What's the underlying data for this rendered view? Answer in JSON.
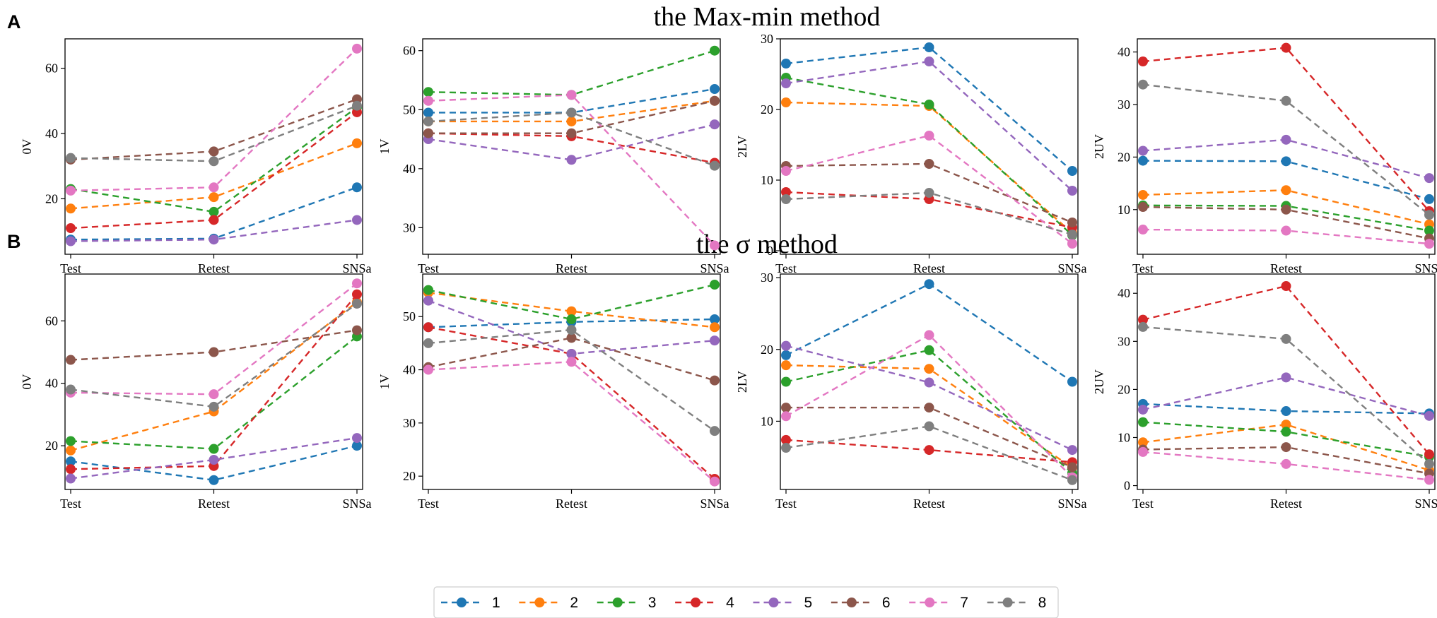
{
  "figure": {
    "panel_labels": [
      "A",
      "B"
    ],
    "row_titles": [
      "the Max-min method",
      "the σ method"
    ]
  },
  "colors": {
    "1": "#1f77b4",
    "2": "#ff7f0e",
    "3": "#2ca02c",
    "4": "#d62728",
    "5": "#9467bd",
    "6": "#8c564b",
    "7": "#e377c2",
    "8": "#7f7f7f"
  },
  "legend": [
    "1",
    "2",
    "3",
    "4",
    "5",
    "6",
    "7",
    "8"
  ],
  "chart_data": [
    {
      "type": "line",
      "row": "A",
      "ylabel": "0V",
      "categories": [
        "Test",
        "Retest",
        "SNSa"
      ],
      "ylim": [
        3,
        69
      ],
      "yticks": [
        20,
        40,
        60
      ],
      "series": [
        {
          "name": "1",
          "values": [
            7.5,
            7.8,
            23.5
          ]
        },
        {
          "name": "2",
          "values": [
            17,
            20.5,
            37
          ]
        },
        {
          "name": "3",
          "values": [
            23,
            16,
            48
          ]
        },
        {
          "name": "4",
          "values": [
            11,
            13.5,
            46.5
          ]
        },
        {
          "name": "5",
          "values": [
            7,
            7.5,
            13.5
          ]
        },
        {
          "name": "6",
          "values": [
            32,
            34.5,
            50.5
          ]
        },
        {
          "name": "7",
          "values": [
            22.5,
            23.5,
            66
          ]
        },
        {
          "name": "8",
          "values": [
            32.5,
            31.5,
            48.5
          ]
        }
      ]
    },
    {
      "type": "line",
      "row": "A",
      "ylabel": "1V",
      "categories": [
        "Test",
        "Retest",
        "SNSa"
      ],
      "ylim": [
        25.5,
        62
      ],
      "yticks": [
        30,
        40,
        50,
        60
      ],
      "series": [
        {
          "name": "1",
          "values": [
            49.5,
            49.5,
            53.5
          ]
        },
        {
          "name": "2",
          "values": [
            48,
            48,
            51.5
          ]
        },
        {
          "name": "3",
          "values": [
            53,
            52.5,
            60
          ]
        },
        {
          "name": "4",
          "values": [
            46,
            45.5,
            41
          ]
        },
        {
          "name": "5",
          "values": [
            45,
            41.5,
            47.5
          ]
        },
        {
          "name": "6",
          "values": [
            46,
            46,
            51.5
          ]
        },
        {
          "name": "7",
          "values": [
            51.5,
            52.5,
            27
          ]
        },
        {
          "name": "8",
          "values": [
            48,
            49.5,
            40.5
          ]
        }
      ]
    },
    {
      "type": "line",
      "row": "A",
      "ylabel": "2LV",
      "categories": [
        "Test",
        "Retest",
        "SNSa"
      ],
      "ylim": [
        -0.5,
        30
      ],
      "yticks": [
        0,
        10,
        20,
        30
      ],
      "series": [
        {
          "name": "1",
          "values": [
            26.5,
            28.8,
            11.3
          ]
        },
        {
          "name": "2",
          "values": [
            21,
            20.5,
            2.5
          ]
        },
        {
          "name": "3",
          "values": [
            24.5,
            20.7,
            2.2
          ]
        },
        {
          "name": "4",
          "values": [
            8.3,
            7.3,
            3.3
          ]
        },
        {
          "name": "5",
          "values": [
            23.7,
            26.8,
            8.5
          ]
        },
        {
          "name": "6",
          "values": [
            12,
            12.3,
            4
          ]
        },
        {
          "name": "7",
          "values": [
            11.3,
            16.3,
            1
          ]
        },
        {
          "name": "8",
          "values": [
            7.3,
            8.2,
            2.3
          ]
        }
      ]
    },
    {
      "type": "line",
      "row": "A",
      "ylabel": "2UV",
      "categories": [
        "Test",
        "Retest",
        "SNSa"
      ],
      "ylim": [
        1.5,
        42.5
      ],
      "yticks": [
        10,
        20,
        30,
        40
      ],
      "series": [
        {
          "name": "1",
          "values": [
            19.3,
            19.2,
            12
          ]
        },
        {
          "name": "2",
          "values": [
            12.8,
            13.7,
            7.2
          ]
        },
        {
          "name": "3",
          "values": [
            10.8,
            10.7,
            6
          ]
        },
        {
          "name": "4",
          "values": [
            38.2,
            40.8,
            9.7
          ]
        },
        {
          "name": "5",
          "values": [
            21.2,
            23.3,
            16
          ]
        },
        {
          "name": "6",
          "values": [
            10.5,
            10,
            4.5
          ]
        },
        {
          "name": "7",
          "values": [
            6.2,
            6,
            3.5
          ]
        },
        {
          "name": "8",
          "values": [
            33.8,
            30.7,
            9
          ]
        }
      ]
    },
    {
      "type": "line",
      "row": "B",
      "ylabel": "0V",
      "categories": [
        "Test",
        "Retest",
        "SNSa"
      ],
      "ylim": [
        6,
        75
      ],
      "yticks": [
        20,
        40,
        60
      ],
      "series": [
        {
          "name": "1",
          "values": [
            15,
            9,
            20
          ]
        },
        {
          "name": "2",
          "values": [
            18.5,
            31,
            66
          ]
        },
        {
          "name": "3",
          "values": [
            21.5,
            19,
            55
          ]
        },
        {
          "name": "4",
          "values": [
            12.5,
            13.5,
            68.5
          ]
        },
        {
          "name": "5",
          "values": [
            9.5,
            15.5,
            22.5
          ]
        },
        {
          "name": "6",
          "values": [
            47.5,
            50,
            57
          ]
        },
        {
          "name": "7",
          "values": [
            37,
            36.5,
            72
          ]
        },
        {
          "name": "8",
          "values": [
            38,
            32.5,
            65.5
          ]
        }
      ]
    },
    {
      "type": "line",
      "row": "B",
      "ylabel": "1V",
      "categories": [
        "Test",
        "Retest",
        "SNSa"
      ],
      "ylim": [
        17.5,
        58
      ],
      "yticks": [
        20,
        30,
        40,
        50
      ],
      "series": [
        {
          "name": "1",
          "values": [
            48,
            49,
            49.5
          ]
        },
        {
          "name": "2",
          "values": [
            54.5,
            51,
            48
          ]
        },
        {
          "name": "3",
          "values": [
            55,
            49.5,
            56
          ]
        },
        {
          "name": "4",
          "values": [
            48,
            43,
            19.5
          ]
        },
        {
          "name": "5",
          "values": [
            53,
            43,
            45.5
          ]
        },
        {
          "name": "6",
          "values": [
            40.5,
            46,
            38
          ]
        },
        {
          "name": "7",
          "values": [
            40,
            41.5,
            19
          ]
        },
        {
          "name": "8",
          "values": [
            45,
            47.5,
            28.5
          ]
        }
      ]
    },
    {
      "type": "line",
      "row": "B",
      "ylabel": "2LV",
      "categories": [
        "Test",
        "Retest",
        "SNSa"
      ],
      "ylim": [
        0.5,
        30.5
      ],
      "yticks": [
        10,
        20,
        30
      ],
      "series": [
        {
          "name": "1",
          "values": [
            19.2,
            29.1,
            15.5
          ]
        },
        {
          "name": "2",
          "values": [
            17.8,
            17.3,
            3.5
          ]
        },
        {
          "name": "3",
          "values": [
            15.5,
            19.9,
            2.8
          ]
        },
        {
          "name": "4",
          "values": [
            7.4,
            6,
            4.3
          ]
        },
        {
          "name": "5",
          "values": [
            20.5,
            15.4,
            6
          ]
        },
        {
          "name": "6",
          "values": [
            11.9,
            11.9,
            3.6
          ]
        },
        {
          "name": "7",
          "values": [
            10.7,
            22,
            2.2
          ]
        },
        {
          "name": "8",
          "values": [
            6.3,
            9.3,
            1.8
          ]
        }
      ]
    },
    {
      "type": "line",
      "row": "B",
      "ylabel": "2UV",
      "categories": [
        "Test",
        "Retest",
        "SNSa"
      ],
      "ylim": [
        -0.8,
        44
      ],
      "yticks": [
        0,
        10,
        20,
        30,
        40
      ],
      "series": [
        {
          "name": "1",
          "values": [
            17,
            15.5,
            15
          ]
        },
        {
          "name": "2",
          "values": [
            9,
            12.7,
            3.2
          ]
        },
        {
          "name": "3",
          "values": [
            13.2,
            11.2,
            6
          ]
        },
        {
          "name": "4",
          "values": [
            34.5,
            41.5,
            6.5
          ]
        },
        {
          "name": "5",
          "values": [
            15.8,
            22.5,
            14.5
          ]
        },
        {
          "name": "6",
          "values": [
            7.5,
            8,
            2.5
          ]
        },
        {
          "name": "7",
          "values": [
            7,
            4.5,
            1.2
          ]
        },
        {
          "name": "8",
          "values": [
            33,
            30.5,
            4.5
          ]
        }
      ]
    }
  ]
}
